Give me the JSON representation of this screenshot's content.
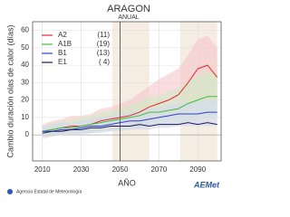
{
  "chart_data": {
    "type": "line",
    "title": "ARAGON",
    "subtitle": "ANUAL",
    "ylabel": "Cambio duración olas de calor (días)",
    "xlabel": "AÑO",
    "x": [
      2010,
      2015,
      2020,
      2025,
      2030,
      2035,
      2040,
      2045,
      2050,
      2055,
      2060,
      2065,
      2070,
      2075,
      2080,
      2085,
      2090,
      2095,
      2100
    ],
    "series": [
      {
        "name": "A2",
        "count": "(11)",
        "color": "#e8272a",
        "band_color": "#f7c6cc",
        "values": [
          2,
          3,
          4,
          5,
          5,
          6,
          8,
          9,
          10,
          11,
          13,
          16,
          18,
          20,
          23,
          30,
          38,
          40,
          33
        ],
        "band_low": [
          -2,
          -1,
          0,
          0,
          1,
          1,
          2,
          3,
          3,
          4,
          5,
          7,
          8,
          9,
          10,
          14,
          18,
          20,
          17
        ],
        "band_high": [
          6,
          8,
          9,
          11,
          11,
          12,
          15,
          16,
          18,
          20,
          24,
          28,
          32,
          35,
          38,
          46,
          55,
          57,
          50
        ]
      },
      {
        "name": "A1B",
        "count": "(19)",
        "color": "#3fbf3f",
        "band_color": "#cdebc4",
        "values": [
          2,
          3,
          4,
          4,
          5,
          6,
          7,
          8,
          9,
          10,
          11,
          13,
          13,
          14,
          15,
          18,
          20,
          22,
          22
        ],
        "band_low": [
          -1,
          -1,
          0,
          0,
          1,
          1,
          2,
          2,
          3,
          3,
          4,
          5,
          5,
          6,
          6,
          8,
          9,
          10,
          10
        ],
        "band_high": [
          5,
          7,
          8,
          9,
          10,
          11,
          13,
          14,
          15,
          17,
          19,
          22,
          23,
          25,
          27,
          31,
          34,
          36,
          35
        ]
      },
      {
        "name": "B1",
        "count": "(13)",
        "color": "#2a3fd0",
        "band_color": "#d4d8ee",
        "values": [
          2,
          2,
          3,
          3,
          4,
          5,
          5,
          6,
          7,
          8,
          8,
          9,
          10,
          11,
          12,
          12,
          12,
          13,
          13
        ],
        "band_low": [
          -1,
          -1,
          0,
          0,
          0,
          1,
          1,
          2,
          2,
          3,
          3,
          3,
          4,
          4,
          5,
          5,
          5,
          5,
          5
        ],
        "band_high": [
          5,
          6,
          7,
          7,
          8,
          9,
          10,
          11,
          12,
          13,
          14,
          15,
          16,
          17,
          18,
          19,
          19,
          20,
          20
        ]
      },
      {
        "name": "E1",
        "count": "( 4)",
        "color": "#1a1a5a",
        "values": [
          1,
          2,
          2,
          3,
          3,
          4,
          4,
          5,
          5,
          5,
          6,
          5,
          6,
          6,
          6,
          7,
          6,
          7,
          6
        ]
      }
    ],
    "xlim": [
      2005,
      2102
    ],
    "xticks": [
      2010,
      2030,
      2050,
      2070,
      2090
    ],
    "ylim": [
      -15,
      65
    ],
    "yticks": [
      0,
      10,
      20,
      30,
      40,
      50,
      60
    ],
    "grid": true,
    "vline": 2050,
    "shaded_periods": [
      [
        2046,
        2065
      ],
      [
        2081,
        2100
      ]
    ]
  },
  "footer": "Agencia Estatal de Meteorología",
  "logo": "AEMet"
}
